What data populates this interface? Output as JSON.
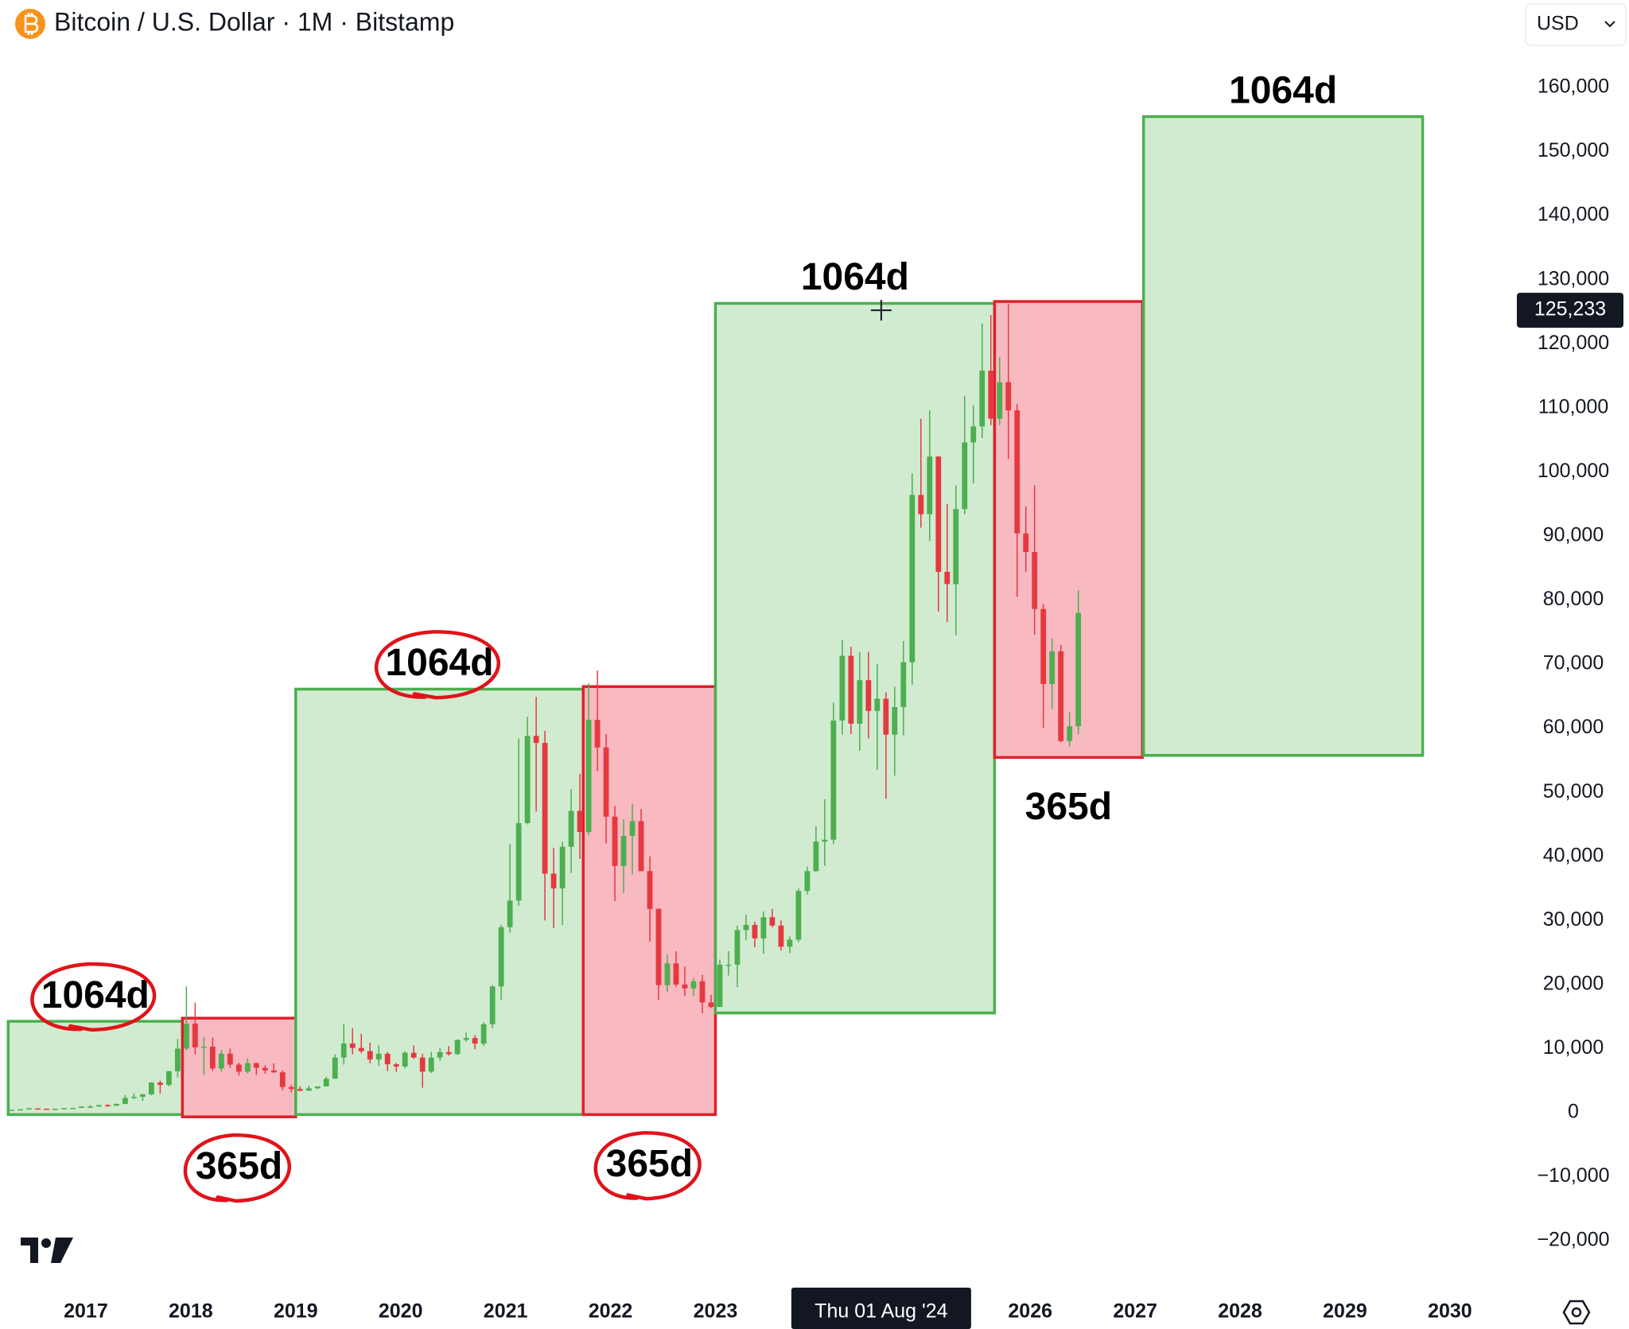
{
  "chart_data": {
    "type": "candlestick",
    "title": "Bitcoin / U.S. Dollar · 1M · Bitstamp",
    "currency": "USD",
    "xlim": [
      2016.25,
      2030.63
    ],
    "ylim": [
      -26190,
      173650
    ],
    "xticks": [
      2017,
      2018,
      2019,
      2020,
      2021,
      2022,
      2023,
      2026,
      2027,
      2028,
      2029,
      2030
    ],
    "yticks": [
      {
        "value": -20000,
        "label": "−20,000"
      },
      {
        "value": -10000,
        "label": "−10,000"
      },
      0,
      {
        "value": 10000,
        "label": "10,000"
      },
      {
        "value": 20000,
        "label": "20,000"
      },
      {
        "value": 30000,
        "label": "30,000"
      },
      {
        "value": 40000,
        "label": "40,000"
      },
      {
        "value": 50000,
        "label": "50,000"
      },
      {
        "value": 60000,
        "label": "60,000"
      },
      {
        "value": 70000,
        "label": "70,000"
      },
      {
        "value": 80000,
        "label": "80,000"
      },
      {
        "value": 90000,
        "label": "90,000"
      },
      {
        "value": 100000,
        "label": "100,000"
      },
      {
        "value": 110000,
        "label": "110,000"
      },
      {
        "value": 120000,
        "label": "120,000"
      },
      {
        "value": 130000,
        "label": "130,000"
      },
      {
        "value": 140000,
        "label": "140,000"
      },
      {
        "value": 150000,
        "label": "150,000"
      },
      {
        "value": 160000,
        "label": "160,000"
      }
    ],
    "up_color": "#4caf50",
    "down_color": "#e53940",
    "candles": [
      [
        416,
        470,
        415,
        448
      ],
      [
        448,
        550,
        440,
        530
      ],
      [
        530,
        780,
        520,
        670
      ],
      [
        670,
        700,
        600,
        625
      ],
      [
        625,
        630,
        540,
        575
      ],
      [
        575,
        630,
        570,
        610
      ],
      [
        610,
        740,
        600,
        700
      ],
      [
        700,
        760,
        680,
        745
      ],
      [
        745,
        980,
        740,
        960
      ],
      [
        960,
        1190,
        750,
        970
      ],
      [
        970,
        1210,
        910,
        1190
      ],
      [
        1190,
        1300,
        890,
        1080
      ],
      [
        1080,
        1430,
        1060,
        1350
      ],
      [
        1350,
        2760,
        1350,
        2300
      ],
      [
        2300,
        3000,
        2100,
        2480
      ],
      [
        2480,
        2930,
        1830,
        2870
      ],
      [
        2870,
        4770,
        2700,
        4700
      ],
      [
        4700,
        5000,
        2970,
        4340
      ],
      [
        4340,
        6500,
        4100,
        6470
      ],
      [
        6470,
        11500,
        5500,
        10000
      ],
      [
        10000,
        19700,
        9700,
        13900
      ],
      [
        13900,
        17200,
        9100,
        10200
      ],
      [
        10200,
        11800,
        5900,
        10300
      ],
      [
        10300,
        11700,
        6500,
        6900
      ],
      [
        6900,
        9800,
        6400,
        9200
      ],
      [
        9200,
        10000,
        7000,
        7500
      ],
      [
        7500,
        7800,
        5800,
        6400
      ],
      [
        6400,
        8500,
        6100,
        7730
      ],
      [
        7730,
        7800,
        5900,
        7000
      ],
      [
        7000,
        7400,
        6100,
        6600
      ],
      [
        6600,
        7700,
        6200,
        6300
      ],
      [
        6300,
        6600,
        3500,
        4000
      ],
      [
        4000,
        4300,
        3200,
        3700
      ],
      [
        3700,
        4100,
        3350,
        3430
      ],
      [
        3430,
        4200,
        3400,
        3800
      ],
      [
        3800,
        4100,
        3700,
        4100
      ],
      [
        4100,
        5600,
        4100,
        5300
      ],
      [
        5300,
        9100,
        5300,
        8600
      ],
      [
        8600,
        13900,
        7500,
        10800
      ],
      [
        10800,
        13200,
        9100,
        10100
      ],
      [
        10100,
        12300,
        9300,
        9600
      ],
      [
        9600,
        10900,
        7700,
        8300
      ],
      [
        8300,
        10500,
        7300,
        9200
      ],
      [
        9200,
        9500,
        6500,
        7550
      ],
      [
        7550,
        7750,
        6400,
        7200
      ],
      [
        7200,
        9600,
        6900,
        9350
      ],
      [
        9350,
        10500,
        8400,
        8600
      ],
      [
        8600,
        9200,
        3900,
        6400
      ],
      [
        6400,
        9500,
        6200,
        8600
      ],
      [
        8600,
        10100,
        8100,
        9450
      ],
      [
        9450,
        10400,
        8900,
        9140
      ],
      [
        9140,
        11450,
        9000,
        11350
      ],
      [
        11350,
        12500,
        11100,
        11650
      ],
      [
        11650,
        12100,
        9900,
        10780
      ],
      [
        10780,
        14100,
        10400,
        13800
      ],
      [
        13800,
        19900,
        13200,
        19700
      ],
      [
        19700,
        29300,
        17600,
        28950
      ],
      [
        28950,
        41900,
        28100,
        33100
      ],
      [
        33100,
        58400,
        32300,
        45200
      ],
      [
        45200,
        61800,
        45000,
        58800
      ],
      [
        58800,
        64900,
        47000,
        57700
      ],
      [
        57700,
        59600,
        30000,
        37300
      ],
      [
        37300,
        41300,
        28800,
        35000
      ],
      [
        35000,
        42300,
        29300,
        41500
      ],
      [
        41500,
        50500,
        37400,
        47100
      ],
      [
        47100,
        52900,
        39600,
        43800
      ],
      [
        43800,
        67000,
        43300,
        61300
      ],
      [
        61300,
        69000,
        53300,
        57000
      ],
      [
        57000,
        59100,
        42000,
        46200
      ],
      [
        46200,
        47900,
        33000,
        38500
      ],
      [
        38500,
        45800,
        34300,
        43200
      ],
      [
        43200,
        48200,
        37200,
        45500
      ],
      [
        45500,
        47400,
        37700,
        37700
      ],
      [
        37700,
        40000,
        26700,
        31800
      ],
      [
        31800,
        31900,
        17600,
        19900
      ],
      [
        19900,
        24700,
        18800,
        23300
      ],
      [
        23300,
        25200,
        19600,
        20000
      ],
      [
        20000,
        22800,
        18200,
        19400
      ],
      [
        19400,
        21000,
        18200,
        20500
      ],
      [
        20500,
        21500,
        15500,
        17200
      ],
      [
        17200,
        18400,
        16300,
        16500
      ],
      [
        16500,
        23900,
        16500,
        23100
      ],
      [
        23100,
        25200,
        21400,
        23100
      ],
      [
        23100,
        29200,
        19600,
        28500
      ],
      [
        28500,
        30900,
        26900,
        29300
      ],
      [
        29300,
        29800,
        25800,
        27200
      ],
      [
        27200,
        31400,
        24800,
        30500
      ],
      [
        30500,
        31800,
        28900,
        29200
      ],
      [
        29200,
        30000,
        25300,
        25900
      ],
      [
        25900,
        27500,
        24900,
        27000
      ],
      [
        27000,
        35000,
        26600,
        34600
      ],
      [
        34600,
        38400,
        34100,
        37700
      ],
      [
        37700,
        44700,
        37600,
        42300
      ],
      [
        42300,
        48900,
        38500,
        42600
      ],
      [
        42600,
        64000,
        41900,
        61200
      ],
      [
        61200,
        73800,
        59000,
        71300
      ],
      [
        71300,
        72700,
        59100,
        60700
      ],
      [
        60700,
        71900,
        56500,
        67500
      ],
      [
        67500,
        71900,
        58400,
        62700
      ],
      [
        62700,
        70000,
        53500,
        64600
      ],
      [
        64600,
        65600,
        49000,
        59000
      ],
      [
        59000,
        66500,
        52600,
        63300
      ],
      [
        63300,
        73600,
        58900,
        70300
      ],
      [
        70300,
        99800,
        66800,
        96400
      ],
      [
        96400,
        108300,
        91300,
        93400
      ],
      [
        93400,
        109600,
        89200,
        102400
      ],
      [
        102400,
        102500,
        78200,
        84400
      ],
      [
        84400,
        95000,
        76600,
        82500
      ],
      [
        82500,
        97900,
        74500,
        94200
      ],
      [
        94200,
        111900,
        93400,
        104600
      ],
      [
        104600,
        110400,
        98200,
        107100
      ],
      [
        107100,
        123200,
        105300,
        115800
      ],
      [
        115800,
        124500,
        107300,
        108300
      ],
      [
        108300,
        117900,
        107300,
        114000
      ],
      [
        114000,
        126200,
        102000,
        109600
      ],
      [
        109600,
        110600,
        80500,
        90400
      ],
      [
        90400,
        94600,
        84400,
        87500
      ],
      [
        87500,
        97900,
        74600,
        78600
      ],
      [
        78600,
        79400,
        60000,
        66900
      ],
      [
        66900,
        74000,
        63000,
        72000
      ],
      [
        72000,
        73000,
        57800,
        58000
      ],
      [
        58000,
        62500,
        57200,
        60300
      ],
      [
        60300,
        81500,
        59000,
        78000
      ]
    ],
    "boxes": [
      {
        "x0": 2016.26,
        "x1": 2017.92,
        "y0": -300,
        "y1": 14260,
        "color": "green",
        "label": "1064d",
        "label_position": "top",
        "circled": true
      },
      {
        "x0": 2017.92,
        "x1": 2019.0,
        "y0": -650,
        "y1": 14750,
        "color": "red",
        "label": "365d",
        "label_position": "bottom",
        "circled": true
      },
      {
        "x0": 2019.0,
        "x1": 2021.74,
        "y0": -300,
        "y1": 66100,
        "color": "green",
        "label": "1064d",
        "label_position": "top",
        "circled": true
      },
      {
        "x0": 2021.74,
        "x1": 2023.0,
        "y0": -300,
        "y1": 66500,
        "color": "red",
        "label": "365d",
        "label_position": "bottom",
        "circled": true
      },
      {
        "x0": 2023.0,
        "x1": 2025.66,
        "y0": 15560,
        "y1": 126300,
        "color": "green",
        "label": "1064d",
        "label_position": "top",
        "circled": false
      },
      {
        "x0": 2025.66,
        "x1": 2027.07,
        "y0": 55440,
        "y1": 126600,
        "color": "red",
        "label": "365d",
        "label_position": "bottom",
        "circled": false
      },
      {
        "x0": 2027.08,
        "x1": 2029.74,
        "y0": 55760,
        "y1": 155450,
        "color": "green",
        "label": "1064d",
        "label_position": "top",
        "circled": false
      }
    ],
    "crosshair": {
      "x": 2024.58,
      "x_label": "Thu 01 Aug '24",
      "y": 125233,
      "y_label": "125,233"
    }
  }
}
